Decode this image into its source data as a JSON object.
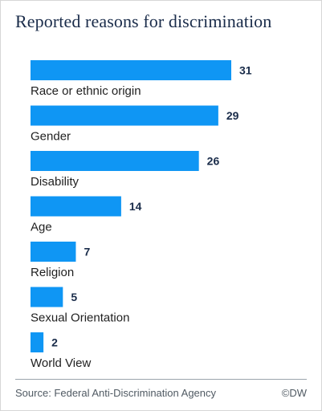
{
  "chart_data": {
    "type": "bar",
    "orientation": "horizontal",
    "title": "Reported reasons for discrimination",
    "categories": [
      "Race or ethnic origin",
      "Gender",
      "Disability",
      "Age",
      "Religion",
      "Sexual Orientation",
      "World View"
    ],
    "values": [
      31,
      29,
      26,
      14,
      7,
      5,
      2
    ],
    "xlim": [
      0,
      31
    ],
    "grid": false,
    "legend": "none",
    "bar_color": "#0f96f4"
  },
  "footer": {
    "source": "Source: Federal Anti-Discrimination Agency",
    "credit": "©DW"
  }
}
